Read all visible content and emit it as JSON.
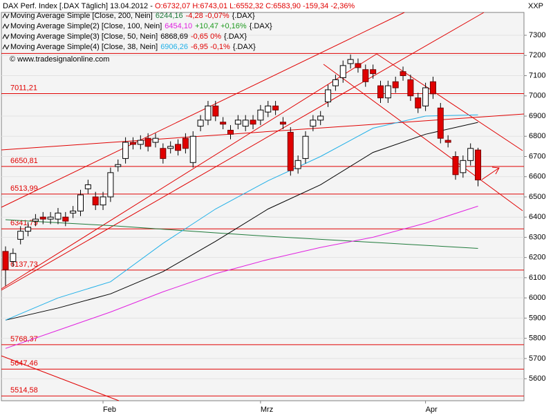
{
  "chart_data": {
    "type": "candlestick",
    "header": {
      "name": "DAX Perf. Index [.DAX  Täglich]",
      "date": "13.04.2012 -",
      "ohlc": "O:6732,07 H:6743,01 L:6552,32 C:6583,90 -159,34 -2,36%"
    },
    "axis_corner_label": "XXP",
    "watermark": "© www.tradesignalonline.com",
    "categories": [
      null,
      null,
      null,
      null,
      null,
      null,
      null,
      null,
      null,
      null,
      null,
      null,
      null,
      "Feb",
      null,
      null,
      null,
      null,
      null,
      null,
      null,
      null,
      null,
      null,
      null,
      null,
      null,
      null,
      null,
      null,
      null,
      null,
      null,
      null,
      "Mrz",
      null,
      null,
      null,
      null,
      null,
      null,
      null,
      null,
      null,
      null,
      null,
      null,
      null,
      null,
      null,
      null,
      null,
      null,
      null,
      null,
      null,
      "Apr",
      null,
      null,
      null,
      null,
      null,
      null,
      null
    ],
    "open": [
      6230,
      6180,
      6290,
      6330,
      6380,
      6400,
      6390,
      6390,
      6400,
      6420,
      6430,
      6540,
      6500,
      6460,
      6500,
      6650,
      6690,
      6770,
      6760,
      6790,
      6770,
      6740,
      6740,
      6760,
      6790,
      6670,
      6850,
      6880,
      6950,
      6870,
      6830,
      6860,
      6850,
      6880,
      6880,
      6920,
      6950,
      6870,
      6820,
      6640,
      6690,
      6850,
      6880,
      6970,
      7050,
      7090,
      7160,
      7160,
      7130,
      7130,
      7050,
      6990,
      7070,
      7120,
      7080,
      6990,
      6950,
      7070,
      6940,
      6780,
      6700,
      6620,
      6680,
      6732.07
    ],
    "high": [
      6255,
      6245,
      6355,
      6375,
      6415,
      6425,
      6425,
      6445,
      6425,
      6455,
      6535,
      6585,
      6525,
      6525,
      6645,
      6685,
      6795,
      6795,
      6805,
      6815,
      6815,
      6765,
      6775,
      6785,
      6815,
      6825,
      6905,
      6975,
      6975,
      6895,
      6855,
      6905,
      6905,
      6905,
      6955,
      6975,
      6975,
      6895,
      6845,
      6705,
      6825,
      6905,
      6925,
      7055,
      7105,
      7175,
      7205,
      7185,
      7155,
      7155,
      7075,
      7075,
      7095,
      7145,
      7105,
      7015,
      7065,
      7095,
      6965,
      6805,
      6725,
      6705,
      6765,
      6743.01
    ],
    "low": [
      6060,
      6155,
      6265,
      6305,
      6355,
      6365,
      6365,
      6365,
      6355,
      6395,
      6405,
      6515,
      6435,
      6435,
      6475,
      6625,
      6665,
      6735,
      6735,
      6725,
      6745,
      6665,
      6715,
      6705,
      6715,
      6645,
      6825,
      6855,
      6875,
      6835,
      6785,
      6835,
      6825,
      6835,
      6855,
      6895,
      6905,
      6835,
      6605,
      6615,
      6665,
      6825,
      6855,
      6945,
      7025,
      7065,
      7135,
      7115,
      7045,
      7085,
      6965,
      6965,
      7015,
      7075,
      6975,
      6915,
      6925,
      6985,
      6765,
      6745,
      6585,
      6595,
      6655,
      6552.32
    ],
    "close": [
      6140,
      6220,
      6330,
      6350,
      6390,
      6390,
      6400,
      6420,
      6380,
      6430,
      6510,
      6560,
      6460,
      6500,
      6620,
      6660,
      6770,
      6760,
      6780,
      6750,
      6790,
      6690,
      6750,
      6730,
      6740,
      6800,
      6880,
      6950,
      6900,
      6860,
      6810,
      6880,
      6880,
      6860,
      6930,
      6950,
      6930,
      6860,
      6630,
      6680,
      6800,
      6880,
      6900,
      7030,
      7080,
      7150,
      7180,
      7140,
      7070,
      7110,
      6990,
      7050,
      7040,
      7100,
      7000,
      6940,
      7040,
      7010,
      6790,
      6770,
      6610,
      6680,
      6740,
      6583.9
    ],
    "up_color": "#ffffff",
    "down_color": "#e00000",
    "series": [
      {
        "name": "Moving Average Simple [Close, 200, Nein]",
        "legend_value": "6244,16",
        "legend_change": "-4,28 -0,07%",
        "legend_suffix": "{.DAX}",
        "color": "#1e7a3a",
        "change_color": "#e00000",
        "x": [
          0,
          7,
          14,
          21,
          28,
          35,
          42,
          49,
          56,
          63
        ],
        "values": [
          6387,
          6372,
          6358,
          6340,
          6322,
          6305,
          6290,
          6275,
          6260,
          6245
        ]
      },
      {
        "name": "Moving Average Simple(2) [Close, 100, Nein]",
        "legend_value": "6454,10",
        "legend_change": "+10,47 +0,16%",
        "legend_suffix": "{.DAX}",
        "color": "#e020e0",
        "change_color": "#1e9a1e",
        "x": [
          0,
          7,
          14,
          21,
          28,
          35,
          42,
          49,
          56,
          63
        ],
        "values": [
          5750,
          5840,
          5930,
          6030,
          6120,
          6190,
          6250,
          6300,
          6370,
          6454
        ]
      },
      {
        "name": "Moving Average Simple(3) [Close, 50, Nein]",
        "legend_value": "6868,69",
        "legend_change": "-0,65 0%",
        "legend_suffix": "{.DAX}",
        "color": "#000000",
        "change_color": "#e00000",
        "x": [
          0,
          7,
          14,
          21,
          28,
          35,
          42,
          49,
          56,
          63
        ],
        "values": [
          5890,
          5950,
          6020,
          6130,
          6280,
          6440,
          6560,
          6720,
          6810,
          6869
        ]
      },
      {
        "name": "Moving Average Simple(4) [Close, 38, Nein]",
        "legend_value": "6906,26",
        "legend_change": "-6,95 -0,1%",
        "legend_suffix": "{.DAX}",
        "color": "#20b0e8",
        "change_color": "#e00000",
        "x": [
          0,
          7,
          14,
          21,
          28,
          35,
          42,
          49,
          56,
          63
        ],
        "values": [
          5890,
          6000,
          6080,
          6270,
          6440,
          6580,
          6700,
          6840,
          6900,
          6906
        ]
      }
    ],
    "levels": {
      "values": [
        7011.21,
        6650.81,
        6513.99,
        6341.79,
        6137.73,
        5768.37,
        5647.46,
        5514.58
      ],
      "value_labels": [
        "7011,21",
        "6650,81",
        "6513,99",
        "6341,79",
        "6137,73",
        "5768,37",
        "5647,46",
        "5514,58"
      ],
      "color": "#e00000"
    },
    "extra_levels": [
      7210
    ],
    "ylim": [
      5491,
      7413
    ],
    "yticks": [
      5600,
      5700,
      5800,
      5900,
      6000,
      6100,
      6200,
      6300,
      6400,
      6500,
      6600,
      6700,
      6800,
      6900,
      7000,
      7100,
      7200,
      7300
    ],
    "grid": true
  }
}
